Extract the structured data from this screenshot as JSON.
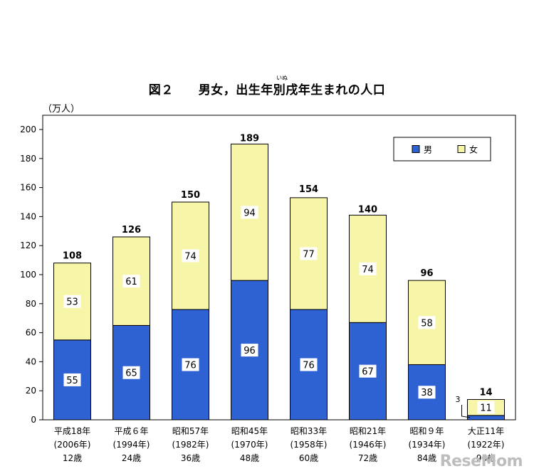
{
  "chart_data": {
    "type": "bar",
    "stacked": true,
    "title": "図２　　男女，出生年別戌年生まれの人口",
    "title_ruby": "いぬ",
    "unit_label": "（万人）",
    "ylim": [
      0,
      200
    ],
    "yticks": [
      0,
      20,
      40,
      60,
      80,
      100,
      120,
      140,
      160,
      180,
      200
    ],
    "grid": false,
    "legend_position": "top-right",
    "categories": [
      {
        "line1": "平成18年",
        "line2": "(2006年)",
        "line3": "12歳"
      },
      {
        "line1": "平成６年",
        "line2": "(1994年)",
        "line3": "24歳"
      },
      {
        "line1": "昭和57年",
        "line2": "(1982年)",
        "line3": "36歳"
      },
      {
        "line1": "昭和45年",
        "line2": "(1970年)",
        "line3": "48歳"
      },
      {
        "line1": "昭和33年",
        "line2": "(1958年)",
        "line3": "60歳"
      },
      {
        "line1": "昭和21年",
        "line2": "(1946年)",
        "line3": "72歳"
      },
      {
        "line1": "昭和９年",
        "line2": "(1934年)",
        "line3": "84歳"
      },
      {
        "line1": "大正11年",
        "line2": "(1922年)",
        "line3": "96歳"
      }
    ],
    "series": [
      {
        "name": "男",
        "color": "#2e62d3",
        "values": [
          55,
          65,
          76,
          96,
          76,
          67,
          38,
          3
        ]
      },
      {
        "name": "女",
        "color": "#f7f5a8",
        "values": [
          53,
          61,
          74,
          94,
          77,
          74,
          58,
          11
        ]
      }
    ],
    "totals": [
      108,
      126,
      150,
      189,
      154,
      140,
      96,
      14
    ]
  },
  "watermark": "ReseMom"
}
